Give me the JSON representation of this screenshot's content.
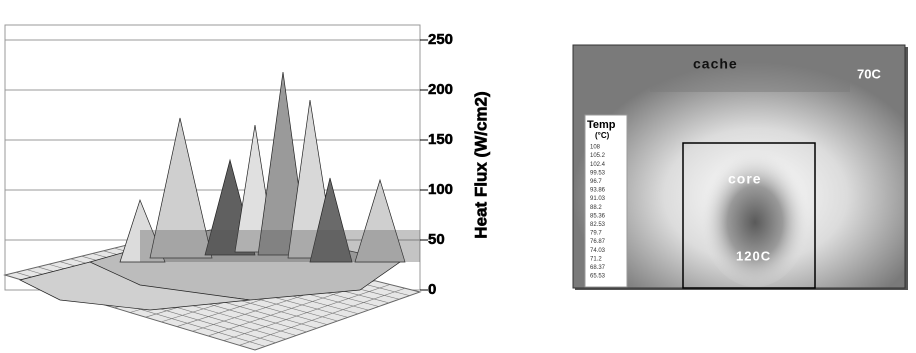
{
  "surface_plot": {
    "axis_title": "Heat Flux (W/cm2)",
    "ticks": [
      0,
      50,
      100,
      150,
      200,
      250
    ]
  },
  "thermal_map": {
    "labels": {
      "cache": "cache",
      "hot_corner": "70C",
      "core": "core",
      "core_temp": "120C"
    },
    "legend": {
      "title": "Temp",
      "unit": "(°C)",
      "values": [
        "108",
        "105.2",
        "102.4",
        "99.53",
        "96.7",
        "93.86",
        "91.03",
        "88.2",
        "85.36",
        "82.53",
        "79.7",
        "76.87",
        "74.03",
        "71.2",
        "68.37",
        "65.53"
      ]
    }
  }
}
